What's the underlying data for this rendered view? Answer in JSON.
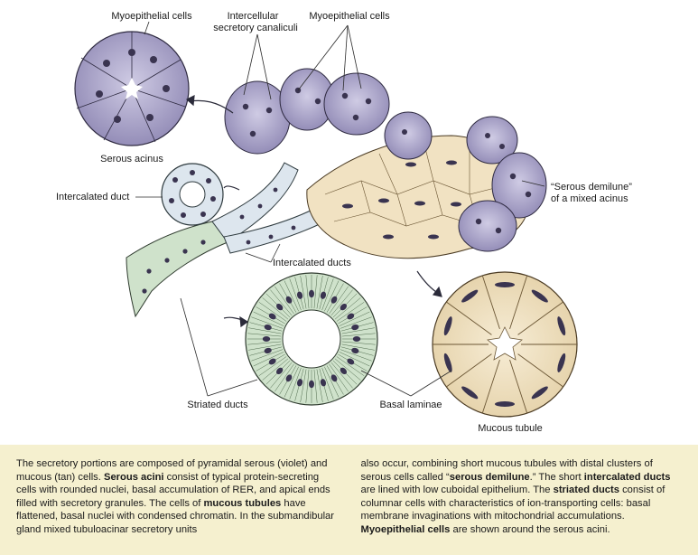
{
  "labels": {
    "myo_left": "Myoepithelial cells",
    "canaliculi_1": "Intercellular",
    "canaliculi_2": "secretory canaliculi",
    "myo_right": "Myoepithelial cells",
    "serous_acinus": "Serous acinus",
    "intercalated_duct": "Intercalated duct",
    "demilune_1": "“Serous demilune”",
    "demilune_2": "of a mixed acinus",
    "intercalated_ducts": "Intercalated ducts",
    "striated_ducts": "Striated ducts",
    "basal_laminae": "Basal laminae",
    "mucous_tubule": "Mucous tubule"
  },
  "caption": {
    "left": [
      {
        "t": "The secretory portions are composed of pyramidal serous (violet) and mucous (tan) cells. "
      },
      {
        "t": "Serous acini",
        "b": true
      },
      {
        "t": " consist of typical protein-secreting cells with rounded nuclei, basal accumulation of RER, and apical ends filled with secretory granules. The cells of "
      },
      {
        "t": "mucous tubules",
        "b": true
      },
      {
        "t": " have flattened, basal nuclei with condensed chromatin. In the submandibular gland mixed tubuloacinar secretory units"
      }
    ],
    "right": [
      {
        "t": "also occur, combining short mucous tubules with distal clusters of serous cells called “"
      },
      {
        "t": "serous demilune",
        "b": true
      },
      {
        "t": ".” The short "
      },
      {
        "t": "intercalated ducts",
        "b": true
      },
      {
        "t": " are lined with low cuboidal epithelium. The "
      },
      {
        "t": "striated ducts",
        "b": true
      },
      {
        "t": " consist of columnar cells with characteristics of ion-transporting cells: basal membrane invaginations with mitochondrial accumulations. "
      },
      {
        "t": "Myoepithelial cells",
        "b": true
      },
      {
        "t": " are shown around the serous acini."
      }
    ]
  },
  "colors": {
    "serous": "#b3aecf",
    "serous_dark": "#8f88b4",
    "mucous": "#f1e2c2",
    "striated": "#cfe2cb",
    "intercalated": "#dde6ee",
    "nucleus": "#3a3450",
    "caption_bg": "#f5f0cf"
  }
}
